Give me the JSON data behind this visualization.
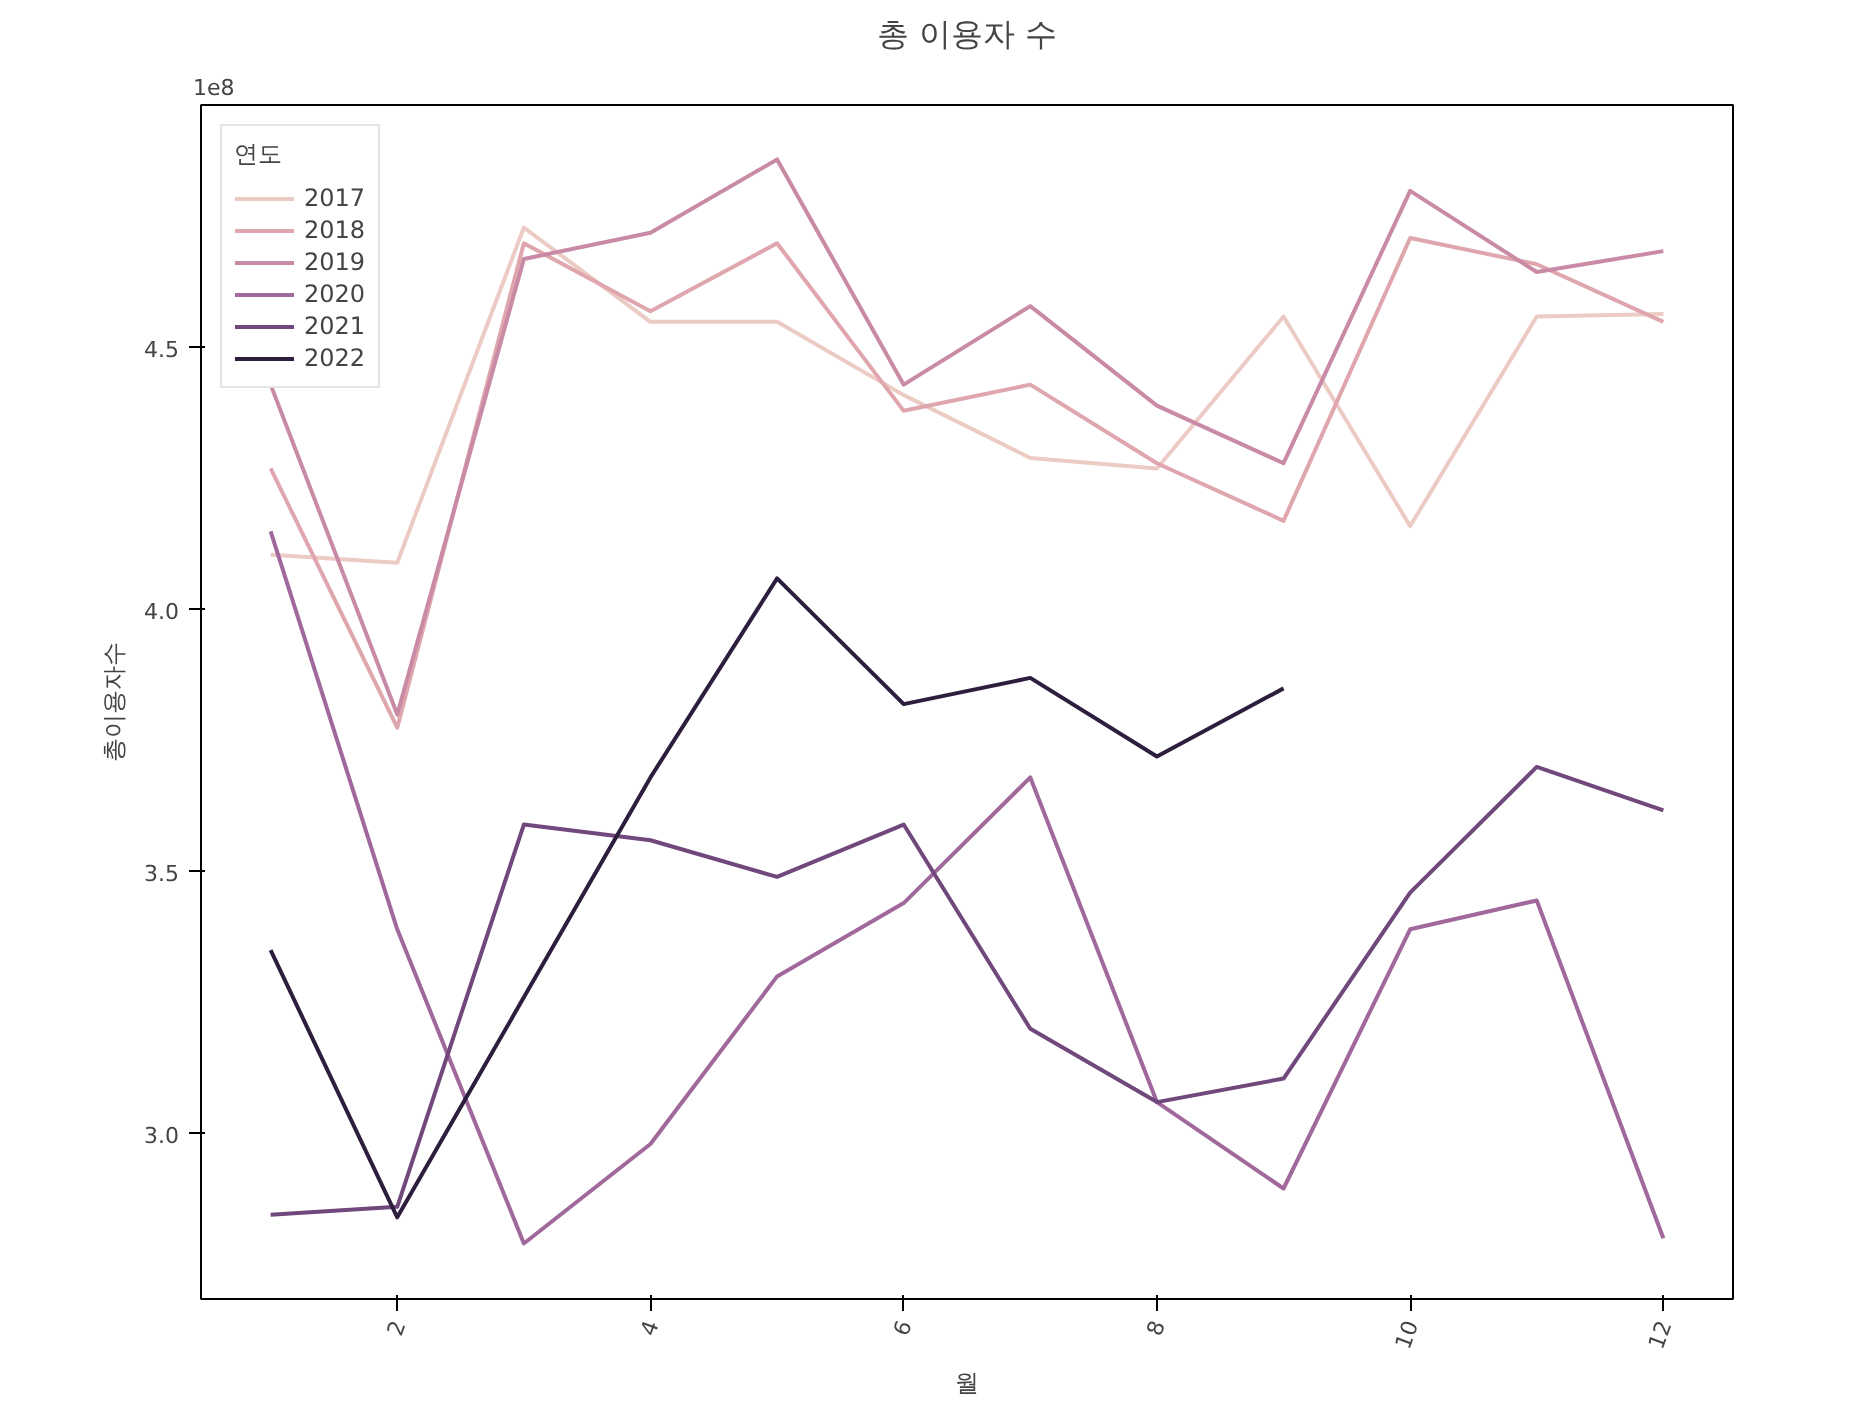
{
  "chart_data": {
    "type": "line",
    "title": "총 이용자 수",
    "xlabel": "월",
    "ylabel": "총이용자수",
    "legend_title": "연도",
    "annotations": [
      "1e8"
    ],
    "x": [
      1,
      2,
      3,
      4,
      5,
      6,
      7,
      8,
      9,
      10,
      11,
      12
    ],
    "series": [
      {
        "name": "2017",
        "color": "#eccbc4",
        "values": [
          4.105,
          4.09,
          4.73,
          4.55,
          4.55,
          4.41,
          4.29,
          4.27,
          4.56,
          4.16,
          4.56,
          4.565
        ]
      },
      {
        "name": "2018",
        "color": "#dfa6ae",
        "values": [
          4.27,
          3.775,
          4.7,
          4.57,
          4.7,
          4.38,
          4.43,
          4.28,
          4.17,
          4.71,
          4.66,
          4.55
        ]
      },
      {
        "name": "2019",
        "color": "#c98aa5",
        "values": [
          4.43,
          3.8,
          4.67,
          4.72,
          4.86,
          4.43,
          4.58,
          4.39,
          4.28,
          4.8,
          4.645,
          4.685
        ]
      },
      {
        "name": "2020",
        "color": "#a0689b",
        "values": [
          4.15,
          3.39,
          2.79,
          2.98,
          3.3,
          3.44,
          3.68,
          3.06,
          2.895,
          3.39,
          3.445,
          2.8
        ]
      },
      {
        "name": "2021",
        "color": "#70487c",
        "values": [
          2.845,
          2.86,
          3.59,
          3.56,
          3.49,
          3.59,
          3.2,
          3.06,
          3.105,
          3.46,
          3.7,
          3.617
        ]
      },
      {
        "name": "2022",
        "color": "#2d1e3e",
        "values": [
          3.35,
          2.84,
          3.26,
          3.68,
          4.06,
          3.82,
          3.87,
          3.72,
          3.85,
          null,
          null,
          null
        ]
      }
    ],
    "xlim": [
      0.45,
      12.55
    ],
    "ylim": [
      2.684,
      4.964
    ],
    "xticks": [
      2,
      4,
      6,
      8,
      10,
      12
    ],
    "yticks": [
      {
        "value": 3,
        "label": "3.0"
      },
      {
        "value": 3.5,
        "label": "3.5"
      },
      {
        "value": 4,
        "label": "4.0"
      },
      {
        "value": 4.5,
        "label": "4.5"
      }
    ],
    "grid": false,
    "legend": "top left",
    "line_style": "solid",
    "marker": "none"
  }
}
